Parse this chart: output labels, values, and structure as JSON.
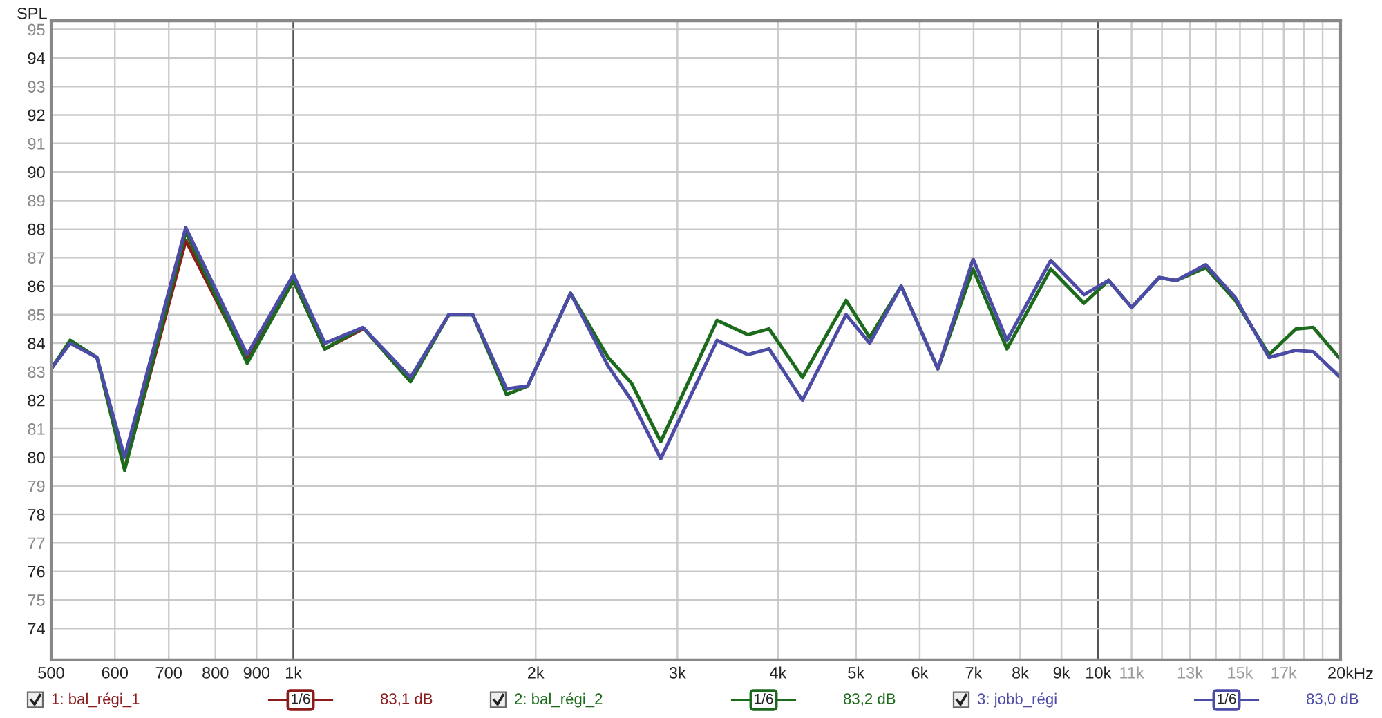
{
  "chart_data": {
    "type": "line",
    "ylabel": "SPL",
    "x": [
      500,
      528,
      570,
      617,
      735,
      876,
      1000,
      1094,
      1220,
      1398,
      1560,
      1670,
      1840,
      1955,
      2210,
      2460,
      2630,
      2860,
      3360,
      3670,
      3900,
      4290,
      4860,
      5200,
      5690,
      6320,
      6990,
      7700,
      8730,
      9600,
      10300,
      11000,
      11900,
      12500,
      13600,
      14800,
      16300,
      17600,
      18500,
      19900
    ],
    "series": [
      {
        "name": "1: bal_régi_1",
        "color": "#8b1c1c",
        "values": [
          null,
          null,
          null,
          79.6,
          87.6,
          83.4,
          86.2,
          83.8,
          84.5,
          null,
          null,
          null,
          null,
          null,
          null,
          null,
          null,
          null,
          null,
          null,
          null,
          null,
          null,
          null,
          null,
          null,
          null,
          null,
          null,
          null,
          null,
          null,
          null,
          null,
          null,
          null,
          null,
          null,
          null,
          null
        ]
      },
      {
        "name": "2: bal_régi_2",
        "color": "#1c6b1c",
        "values": [
          83.1,
          84.1,
          83.5,
          79.55,
          87.9,
          83.3,
          86.2,
          83.8,
          84.55,
          82.65,
          85.0,
          85.0,
          82.2,
          82.5,
          85.75,
          83.5,
          82.6,
          80.55,
          84.8,
          84.3,
          84.5,
          82.8,
          85.5,
          84.2,
          86.0,
          83.1,
          86.6,
          83.8,
          86.6,
          85.4,
          86.2,
          85.25,
          86.3,
          86.2,
          86.65,
          85.5,
          83.6,
          84.5,
          84.55,
          83.5
        ]
      },
      {
        "name": "3: jobb_régi",
        "color": "#4c4ca6",
        "values": [
          83.1,
          84.0,
          83.5,
          80.0,
          88.05,
          83.6,
          86.4,
          84.0,
          84.55,
          82.8,
          85.0,
          85.0,
          82.4,
          82.5,
          85.75,
          83.2,
          82.0,
          79.95,
          84.1,
          83.6,
          83.8,
          82.0,
          85.0,
          84.0,
          86.0,
          83.1,
          86.95,
          84.1,
          86.9,
          85.7,
          86.2,
          85.25,
          86.3,
          86.2,
          86.75,
          85.6,
          83.5,
          83.75,
          83.7,
          82.85
        ]
      }
    ],
    "log": "x",
    "xlim": [
      500,
      20000
    ],
    "xticks": [
      500,
      600,
      700,
      800,
      900,
      {
        "value": 1000,
        "label": "1k"
      },
      {
        "value": 2000,
        "label": "2k"
      },
      {
        "value": 3000,
        "label": "3k"
      },
      {
        "value": 4000,
        "label": "4k"
      },
      {
        "value": 5000,
        "label": "5k"
      },
      {
        "value": 6000,
        "label": "6k"
      },
      {
        "value": 7000,
        "label": "7k"
      },
      {
        "value": 8000,
        "label": "8k"
      },
      {
        "value": 9000,
        "label": "9k"
      },
      {
        "value": 10000,
        "label": "10k"
      },
      {
        "value": 11000,
        "label": "11k"
      },
      {
        "value": 12000,
        "label": null
      },
      {
        "value": 13000,
        "label": "13k"
      },
      {
        "value": 14000,
        "label": null
      },
      {
        "value": 15000,
        "label": "15k"
      },
      {
        "value": 16000,
        "label": null
      },
      {
        "value": 17000,
        "label": "17k"
      },
      {
        "value": 18000,
        "label": null
      },
      {
        "value": 19000,
        "label": null
      },
      {
        "value": 20000,
        "label": "20k"
      }
    ],
    "xlabel": "Hz",
    "ylim": [
      72.9,
      95.3
    ],
    "yticks": [
      74,
      75,
      76,
      77,
      78,
      79,
      80,
      81,
      82,
      83,
      84,
      85,
      86,
      87,
      88,
      89,
      90,
      91,
      92,
      93,
      94,
      95
    ],
    "grid": true,
    "legend": "bottom",
    "line_style": "solid",
    "marker": "none",
    "annotations": [
      "1/6",
      "83,1 dB",
      "1/6",
      "83,2 dB",
      "1/6",
      "83,0 dB"
    ]
  }
}
